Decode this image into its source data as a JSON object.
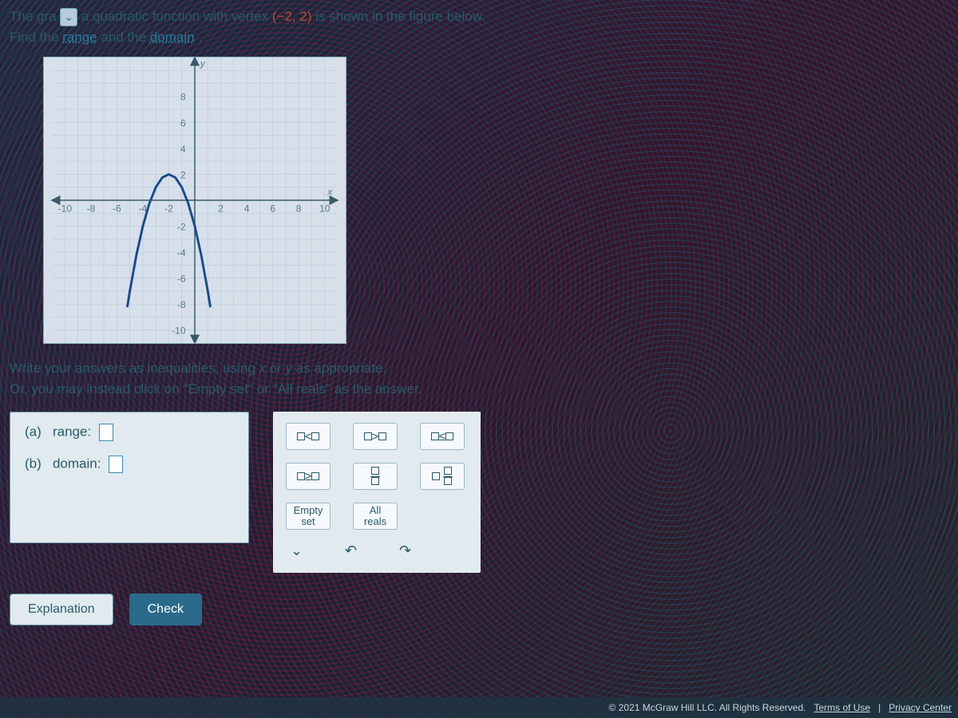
{
  "problem": {
    "prefix": "The gra",
    "dropdown_placeholder": "",
    "mid": " a quadratic function with vertex ",
    "vertex": "(−2, 2)",
    "suffix": " is shown in the figure below.",
    "line2_a": "Find the ",
    "link_range": "range",
    "line2_b": " and the ",
    "link_domain": "domain",
    "line2_c": "."
  },
  "graph": {
    "type": "scatter-line",
    "background_color": "#e6f0f8",
    "grid_color": "#b8cdd8",
    "axis_color": "#3a5a6a",
    "xlim": [
      -11,
      11
    ],
    "ylim": [
      -11,
      11
    ],
    "tick_step": 2,
    "xtick_labels": [
      "-10",
      "-8",
      "-6",
      "-4",
      "-2",
      "2",
      "4",
      "6",
      "8",
      "10"
    ],
    "ytick_labels": [
      "-10",
      "-8",
      "-6",
      "-4",
      "-2",
      "2",
      "4",
      "6",
      "8"
    ],
    "x_axis_label": "x",
    "y_axis_label": "y",
    "curve": {
      "vertex": [
        -2,
        2
      ],
      "direction": "down",
      "a": -1,
      "color": "#1a4a8a",
      "width": 2.2,
      "points_x": [
        -5.2,
        -5,
        -4.5,
        -4,
        -3.5,
        -3,
        -2.5,
        -2,
        -1.5,
        -1,
        -0.5,
        0,
        0.5,
        1,
        1.2
      ],
      "points_y": [
        -8.24,
        -7,
        -4.25,
        -2,
        -0.25,
        1,
        1.75,
        2,
        1.75,
        1,
        -0.25,
        -2,
        -4.25,
        -7,
        -8.24
      ]
    }
  },
  "instructions": {
    "l1a": "Write your answers as ",
    "l1_link": "inequalities",
    "l1b": ", using ",
    "var_x": "x",
    "l1c": " or ",
    "var_y": "y",
    "l1d": " as appropriate.",
    "l2": "Or, you may instead click on \"Empty set\" or \"All reals\" as the answer."
  },
  "answers": {
    "a_label": "(a)",
    "a_text": "range:",
    "b_label": "(b)",
    "b_text": "domain:"
  },
  "palette": {
    "lt": "<",
    "gt": ">",
    "le": "≤",
    "ge": "≥",
    "empty_l1": "Empty",
    "empty_l2": "set",
    "all_l1": "All",
    "all_l2": "reals"
  },
  "buttons": {
    "explanation": "Explanation",
    "check": "Check"
  },
  "footer": {
    "copyright": "© 2021 McGraw Hill LLC. All Rights Reserved.",
    "terms": "Terms of Use",
    "sep": "|",
    "privacy": "Privacy Center"
  },
  "colors": {
    "text": "#2a5a6a",
    "link": "#2a7a9a",
    "vertex": "#c04a2a"
  }
}
